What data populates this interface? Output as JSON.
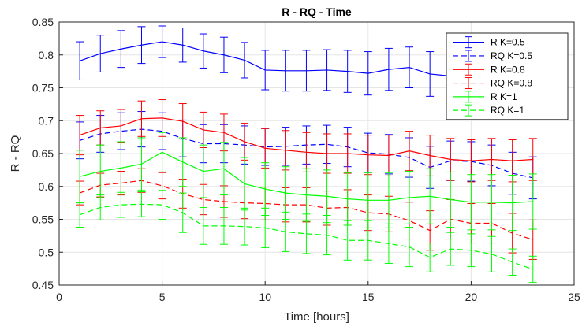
{
  "chart_data": {
    "type": "line",
    "title": "R -  RQ - Time",
    "xlabel": "Time [hours]",
    "ylabel": "R -  RQ",
    "xlim": [
      0,
      25
    ],
    "ylim": [
      0.45,
      0.85
    ],
    "xticks": [
      0,
      5,
      10,
      15,
      20,
      25
    ],
    "xtick_labels": [
      "0",
      "5",
      "10",
      "15",
      "20",
      "25"
    ],
    "yticks": [
      0.45,
      0.5,
      0.55,
      0.6,
      0.65,
      0.7,
      0.75,
      0.8,
      0.85
    ],
    "ytick_labels": [
      "0.45",
      "0.5",
      "0.55",
      "0.6",
      "0.65",
      "0.7",
      "0.75",
      "0.8",
      "0.85"
    ],
    "grid": true,
    "legend_position": "top-right",
    "x": [
      1,
      2,
      3,
      4,
      5,
      6,
      7,
      8,
      9,
      10,
      11,
      12,
      13,
      14,
      15,
      16,
      17,
      18,
      19,
      20,
      21,
      22,
      23
    ],
    "series": [
      {
        "name": "R K=0.5",
        "color": "#0000ff",
        "dash": "solid",
        "values": [
          0.791,
          0.802,
          0.809,
          0.815,
          0.82,
          0.815,
          0.806,
          0.8,
          0.792,
          0.777,
          0.776,
          0.776,
          0.777,
          0.775,
          0.772,
          0.778,
          0.781,
          0.771,
          0.768,
          0.769,
          0.77,
          0.77,
          0.77
        ],
        "err": [
          0.029,
          0.028,
          0.028,
          0.028,
          0.024,
          0.026,
          0.026,
          0.027,
          0.027,
          0.03,
          0.031,
          0.031,
          0.031,
          0.032,
          0.033,
          0.032,
          0.031,
          0.034,
          0.035,
          0.035,
          0.035,
          0.035,
          0.035
        ]
      },
      {
        "name": "RQ K=0.5",
        "color": "#0000ff",
        "dash": "dashed",
        "values": [
          0.67,
          0.68,
          0.684,
          0.687,
          0.684,
          0.673,
          0.665,
          0.665,
          0.663,
          0.66,
          0.661,
          0.663,
          0.664,
          0.66,
          0.651,
          0.649,
          0.644,
          0.629,
          0.639,
          0.638,
          0.632,
          0.62,
          0.613
        ],
        "err": [
          0.028,
          0.028,
          0.028,
          0.027,
          0.028,
          0.028,
          0.029,
          0.029,
          0.029,
          0.028,
          0.029,
          0.029,
          0.029,
          0.03,
          0.03,
          0.03,
          0.03,
          0.032,
          0.03,
          0.03,
          0.031,
          0.032,
          0.032
        ]
      },
      {
        "name": "R K=0.8",
        "color": "#ff0000",
        "dash": "solid",
        "values": [
          0.678,
          0.689,
          0.692,
          0.703,
          0.704,
          0.699,
          0.686,
          0.682,
          0.668,
          0.658,
          0.655,
          0.652,
          0.65,
          0.65,
          0.648,
          0.647,
          0.654,
          0.647,
          0.641,
          0.639,
          0.641,
          0.639,
          0.641
        ],
        "err": [
          0.03,
          0.026,
          0.025,
          0.027,
          0.028,
          0.027,
          0.027,
          0.028,
          0.028,
          0.03,
          0.03,
          0.03,
          0.03,
          0.03,
          0.03,
          0.031,
          0.03,
          0.031,
          0.032,
          0.032,
          0.032,
          0.032,
          0.032
        ]
      },
      {
        "name": "RQ K=0.8",
        "color": "#ff0000",
        "dash": "dashed",
        "values": [
          0.59,
          0.602,
          0.605,
          0.609,
          0.601,
          0.589,
          0.58,
          0.577,
          0.575,
          0.574,
          0.572,
          0.572,
          0.567,
          0.568,
          0.56,
          0.558,
          0.548,
          0.533,
          0.55,
          0.544,
          0.544,
          0.529,
          0.519
        ],
        "err": [
          0.018,
          0.018,
          0.018,
          0.018,
          0.02,
          0.022,
          0.023,
          0.024,
          0.024,
          0.025,
          0.026,
          0.026,
          0.026,
          0.027,
          0.027,
          0.027,
          0.028,
          0.03,
          0.03,
          0.03,
          0.03,
          0.03,
          0.03
        ]
      },
      {
        "name": "R K=1",
        "color": "#00ff00",
        "dash": "solid",
        "values": [
          0.615,
          0.623,
          0.628,
          0.634,
          0.652,
          0.637,
          0.623,
          0.627,
          0.604,
          0.596,
          0.59,
          0.587,
          0.585,
          0.581,
          0.579,
          0.579,
          0.583,
          0.585,
          0.58,
          0.576,
          0.576,
          0.575,
          0.577
        ],
        "err": [
          0.04,
          0.04,
          0.04,
          0.04,
          0.03,
          0.037,
          0.04,
          0.04,
          0.04,
          0.04,
          0.04,
          0.04,
          0.04,
          0.04,
          0.042,
          0.042,
          0.04,
          0.042,
          0.042,
          0.042,
          0.042,
          0.042,
          0.042
        ]
      },
      {
        "name": "RQ K=1",
        "color": "#00ff00",
        "dash": "dashed",
        "values": [
          0.557,
          0.568,
          0.572,
          0.573,
          0.572,
          0.56,
          0.54,
          0.54,
          0.539,
          0.537,
          0.531,
          0.528,
          0.526,
          0.518,
          0.518,
          0.513,
          0.508,
          0.492,
          0.505,
          0.503,
          0.497,
          0.485,
          0.474
        ],
        "err": [
          0.019,
          0.019,
          0.019,
          0.019,
          0.022,
          0.03,
          0.028,
          0.028,
          0.028,
          0.03,
          0.03,
          0.03,
          0.03,
          0.03,
          0.03,
          0.03,
          0.03,
          0.022,
          0.025,
          0.025,
          0.027,
          0.02,
          0.02
        ]
      }
    ]
  }
}
